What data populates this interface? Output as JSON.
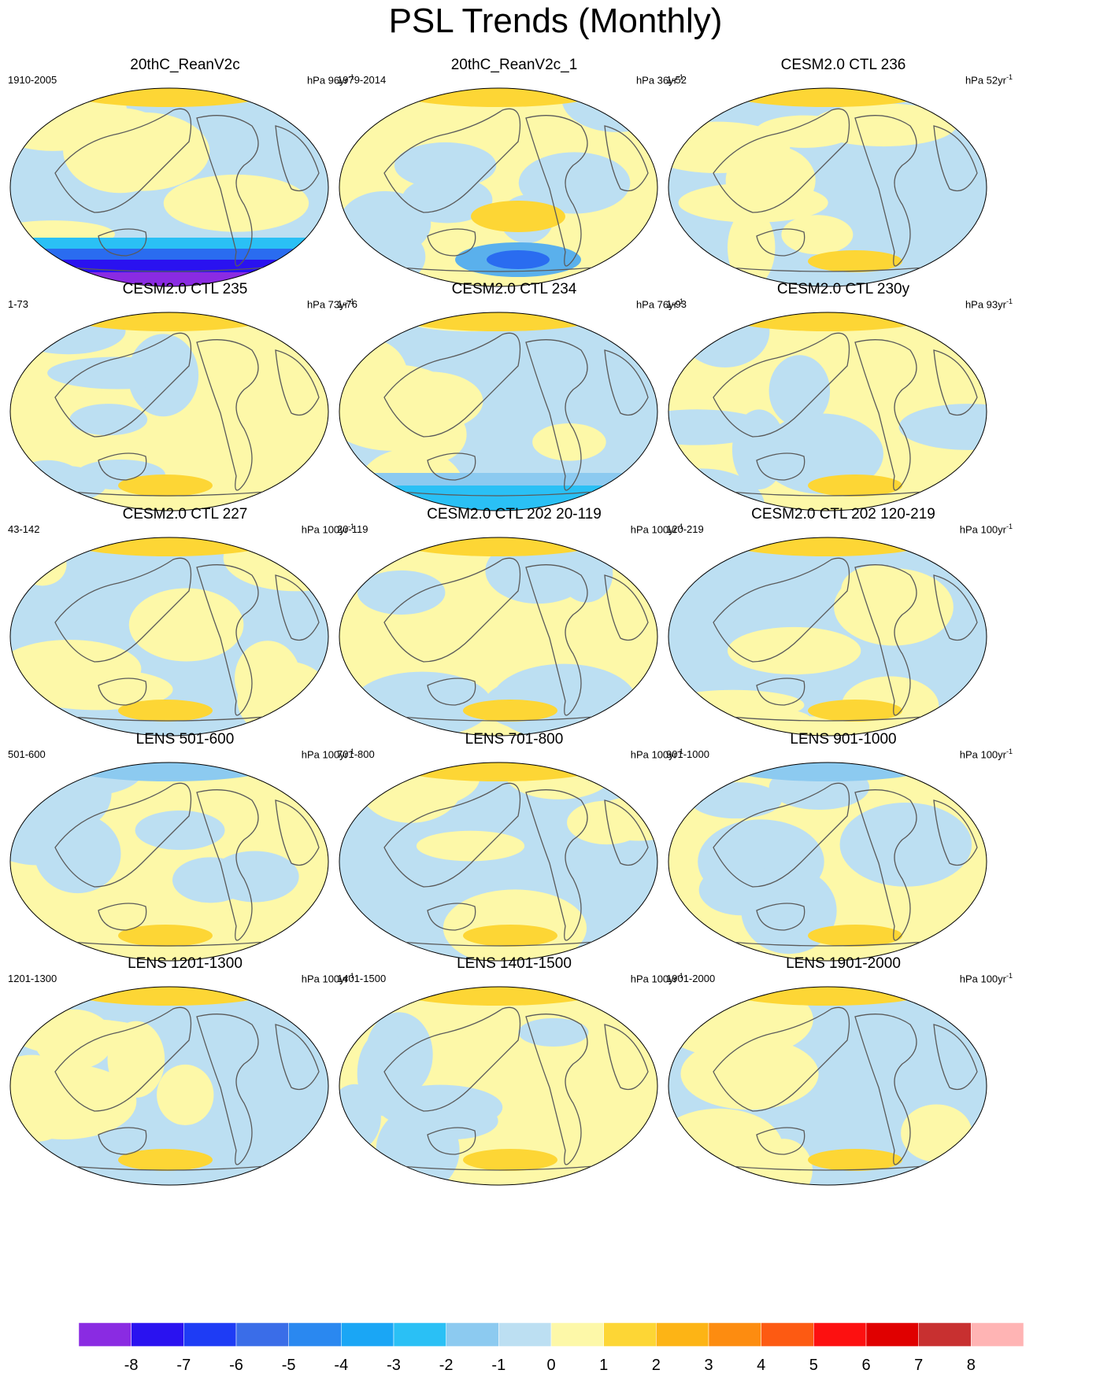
{
  "title": "PSL Trends (Monthly)",
  "panels": [
    {
      "title": "20thC_ReanV2c",
      "left": "1910-2005",
      "unit_prefix": "hPa 96yr",
      "unit_sup": "-1"
    },
    {
      "title": "20thC_ReanV2c_1",
      "left": "1979-2014",
      "unit_prefix": "hPa 36yr",
      "unit_sup": "-1"
    },
    {
      "title": "CESM2.0 CTL 236",
      "left": "1-52",
      "unit_prefix": "hPa 52yr",
      "unit_sup": "-1"
    },
    {
      "title": "CESM2.0 CTL 235",
      "left": "1-73",
      "unit_prefix": "hPa 73yr",
      "unit_sup": "-1"
    },
    {
      "title": "CESM2.0 CTL 234",
      "left": "1-76",
      "unit_prefix": "hPa 76yr",
      "unit_sup": "-1"
    },
    {
      "title": "CESM2.0 CTL 230y",
      "left": "1-93",
      "unit_prefix": "hPa 93yr",
      "unit_sup": "-1"
    },
    {
      "title": "CESM2.0 CTL 227",
      "left": "43-142",
      "unit_prefix": "hPa 100yr",
      "unit_sup": "-1"
    },
    {
      "title": "CESM2.0 CTL 202 20-119",
      "left": "20-119",
      "unit_prefix": "hPa 100yr",
      "unit_sup": "-1"
    },
    {
      "title": "CESM2.0 CTL 202 120-219",
      "left": "120-219",
      "unit_prefix": "hPa 100yr",
      "unit_sup": "-1"
    },
    {
      "title": "LENS 501-600",
      "left": "501-600",
      "unit_prefix": "hPa 100yr",
      "unit_sup": "-1"
    },
    {
      "title": "LENS 701-800",
      "left": "701-800",
      "unit_prefix": "hPa 100yr",
      "unit_sup": "-1"
    },
    {
      "title": "LENS 901-1000",
      "left": "901-1000",
      "unit_prefix": "hPa 100yr",
      "unit_sup": "-1"
    },
    {
      "title": "LENS 1201-1300",
      "left": "1201-1300",
      "unit_prefix": "hPa 100yr",
      "unit_sup": "-1"
    },
    {
      "title": "LENS 1401-1500",
      "left": "1401-1500",
      "unit_prefix": "hPa 100yr",
      "unit_sup": "-1"
    },
    {
      "title": "LENS 1901-2000",
      "left": "1901-2000",
      "unit_prefix": "hPa 100yr",
      "unit_sup": "-1"
    }
  ],
  "colorbar": {
    "labels": [
      "-8",
      "-7",
      "-6",
      "-5",
      "-4",
      "-3",
      "-2",
      "-1",
      "0",
      "1",
      "2",
      "3",
      "4",
      "5",
      "6",
      "7",
      "8"
    ],
    "colors": [
      "#8a2be2",
      "#2a12f0",
      "#1e3cf5",
      "#3a6de8",
      "#2a88f0",
      "#1aa6f5",
      "#2ac0f5",
      "#8ccaf0",
      "#bcdff2",
      "#fdf8a8",
      "#fdd635",
      "#fdb415",
      "#fd8c10",
      "#fd5a12",
      "#fd1010",
      "#e00000",
      "#c83030",
      "#ffb4b4"
    ]
  }
}
